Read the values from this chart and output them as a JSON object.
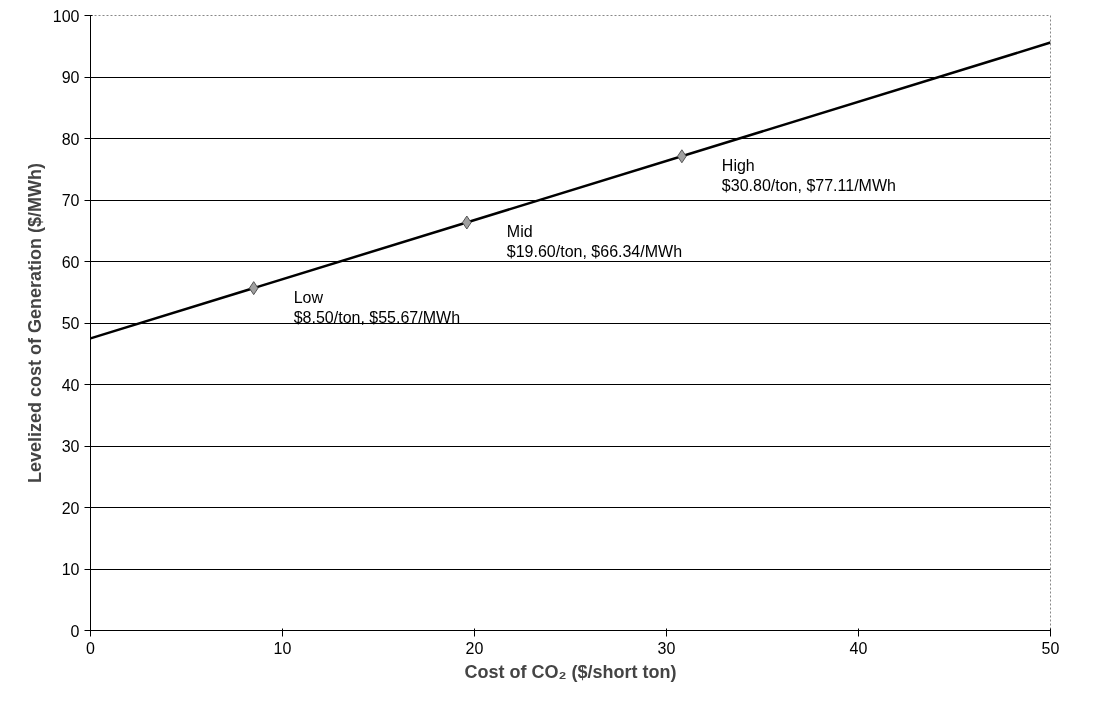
{
  "chart_data": {
    "type": "line",
    "xlabel": "Cost of CO₂ ($/short ton)",
    "ylabel": "Levelized cost of Generation ($/MWh)",
    "xlim": [
      0,
      50
    ],
    "xticks": [
      0,
      10,
      20,
      30,
      40,
      50
    ],
    "ylim": [
      0,
      100
    ],
    "yticks": [
      0,
      10,
      20,
      30,
      40,
      50,
      60,
      70,
      80,
      90,
      100
    ],
    "grid": "y",
    "series": [
      {
        "color": "#000000",
        "x": [
          0,
          50
        ],
        "values": [
          47.5,
          95.6
        ],
        "marker": "none"
      },
      {
        "type": "scatter",
        "color": "#a0a0a0",
        "x": [
          8.5,
          19.6,
          30.8
        ],
        "values": [
          55.67,
          66.34,
          77.11
        ],
        "marker": "diamond"
      }
    ],
    "annotations": [
      {
        "text": "Low\n$8.50/ton, $55.67/MWh",
        "x": 8.5,
        "y": 55.67
      },
      {
        "text": "Mid\n$19.60/ton, $66.34/MWh",
        "x": 19.6,
        "y": 66.34
      },
      {
        "text": "High\n$30.80/ton, $77.11/MWh",
        "x": 30.8,
        "y": 77.11
      }
    ]
  }
}
